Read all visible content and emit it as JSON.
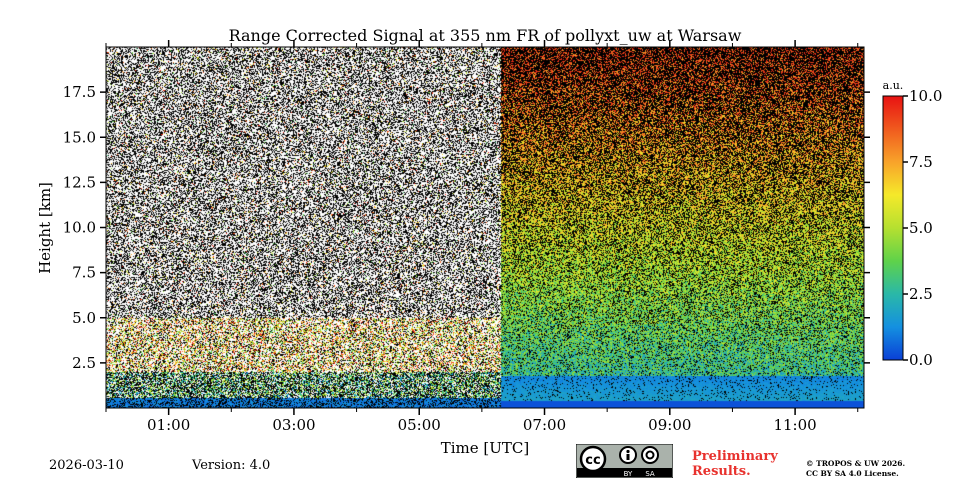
{
  "chart_data": {
    "type": "heatmap",
    "title": "Range Corrected Signal at 355 nm FR of pollyxt_uw at Warsaw",
    "xlabel": "Time [UTC]",
    "ylabel": "Height [km]",
    "xlim_hours": [
      0.0,
      12.1
    ],
    "ylim_km": [
      0.0,
      20.0
    ],
    "x_ticks": [
      {
        "hour": 1,
        "label": "01:00"
      },
      {
        "hour": 3,
        "label": "03:00"
      },
      {
        "hour": 5,
        "label": "05:00"
      },
      {
        "hour": 7,
        "label": "07:00"
      },
      {
        "hour": 9,
        "label": "09:00"
      },
      {
        "hour": 11,
        "label": "11:00"
      }
    ],
    "y_ticks": [
      {
        "value": 2.5,
        "label": "2.5"
      },
      {
        "value": 5.0,
        "label": "5.0"
      },
      {
        "value": 7.5,
        "label": "7.5"
      },
      {
        "value": 10.0,
        "label": "10.0"
      },
      {
        "value": 12.5,
        "label": "12.5"
      },
      {
        "value": 15.0,
        "label": "15.0"
      },
      {
        "value": 17.5,
        "label": "17.5"
      }
    ],
    "data_break_hour": 6.3,
    "colorbar": {
      "label": "a.u.",
      "range": [
        0.0,
        10.0
      ],
      "ticks": [
        {
          "value": 0.0,
          "label": "0.0"
        },
        {
          "value": 2.5,
          "label": "2.5"
        },
        {
          "value": 5.0,
          "label": "5.0"
        },
        {
          "value": 7.5,
          "label": "7.5"
        },
        {
          "value": 10.0,
          "label": "10.0"
        }
      ],
      "colormap": [
        "#0a3fd6",
        "#1490e0",
        "#2ab8a8",
        "#5fd24a",
        "#b5e030",
        "#f5e92a",
        "#f8a32a",
        "#f05a1e",
        "#e81212"
      ]
    }
  },
  "footer": {
    "date": "2026-03-10",
    "version": "Version: 4.0",
    "preliminary_line1": "Preliminary",
    "preliminary_line2": "Results.",
    "copyright_line1": "© TROPOS & UW 2026.",
    "copyright_line2": "CC BY SA 4.0 License.",
    "license_badge_by": "BY",
    "license_badge_sa": "SA"
  }
}
